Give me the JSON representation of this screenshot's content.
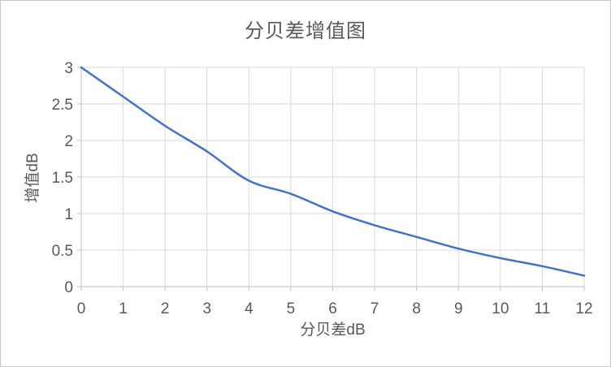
{
  "chart_data": {
    "type": "line",
    "title": "分贝差增值图",
    "xlabel": "分贝差dB",
    "ylabel": "增值dB",
    "x": [
      0,
      1,
      2,
      3,
      4,
      5,
      6,
      7,
      8,
      9,
      10,
      11,
      12
    ],
    "values": [
      3.0,
      2.6,
      2.2,
      1.85,
      1.45,
      1.27,
      1.03,
      0.84,
      0.68,
      0.52,
      0.39,
      0.28,
      0.15
    ],
    "x_tick_labels": [
      "0",
      "1",
      "2",
      "3",
      "4",
      "5",
      "6",
      "7",
      "8",
      "9",
      "10",
      "11",
      "12"
    ],
    "x_tick_values": [
      0,
      1,
      2,
      3,
      4,
      5,
      6,
      7,
      8,
      9,
      10,
      11,
      12
    ],
    "y_tick_labels": [
      "0",
      "0.5",
      "1",
      "1.5",
      "2",
      "2.5",
      "3"
    ],
    "y_tick_values": [
      0,
      0.5,
      1,
      1.5,
      2,
      2.5,
      3
    ],
    "xlim": [
      0,
      12
    ],
    "ylim": [
      0,
      3
    ],
    "grid": true,
    "legend": "none",
    "smooth_line": true,
    "colors": {
      "line": "#4472C4",
      "gridline": "#D9D9D9",
      "axis": "#BFBFBF",
      "text": "#595959",
      "background": "#FFFFFF",
      "frame_border": "#C9C9C9"
    }
  }
}
